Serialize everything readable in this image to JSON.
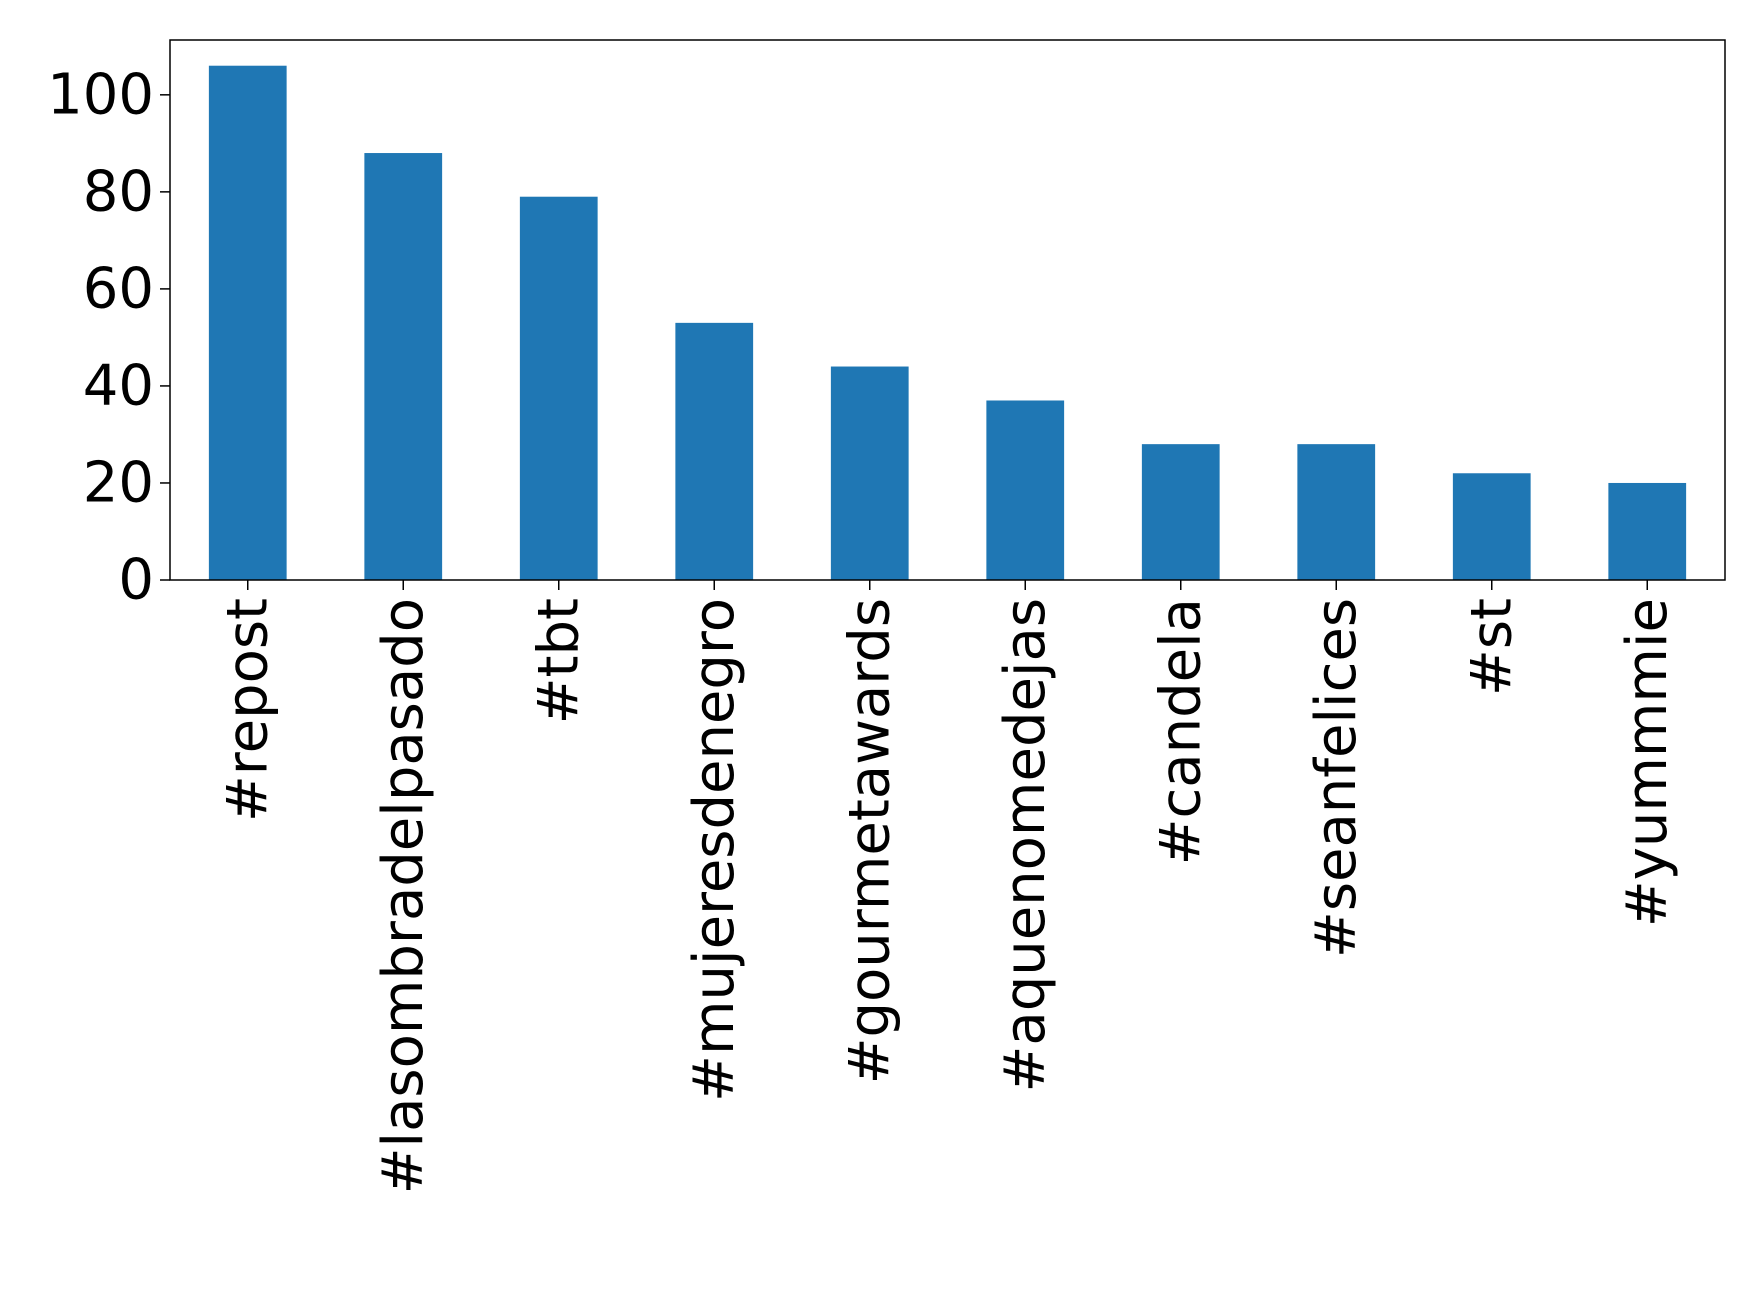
{
  "chart_data": {
    "type": "bar",
    "title": "",
    "xlabel": "",
    "ylabel": "",
    "categories": [
      "#repost",
      "#lasombradelpasado",
      "#tbt",
      "#mujeresdenegro",
      "#gourmetawards",
      "#aquenomedejas",
      "#candela",
      "#seanfelices",
      "#st",
      "#yummmie"
    ],
    "values": [
      106,
      88,
      79,
      53,
      44,
      37,
      28,
      28,
      22,
      20
    ],
    "ylim": [
      0,
      111.3
    ],
    "yticks": [
      0,
      20,
      40,
      60,
      80,
      100
    ],
    "grid": false,
    "legend": "none",
    "colors": {
      "bar": "#1f77b4",
      "axis": "#000000",
      "text": "#000000",
      "background": "#ffffff"
    }
  }
}
